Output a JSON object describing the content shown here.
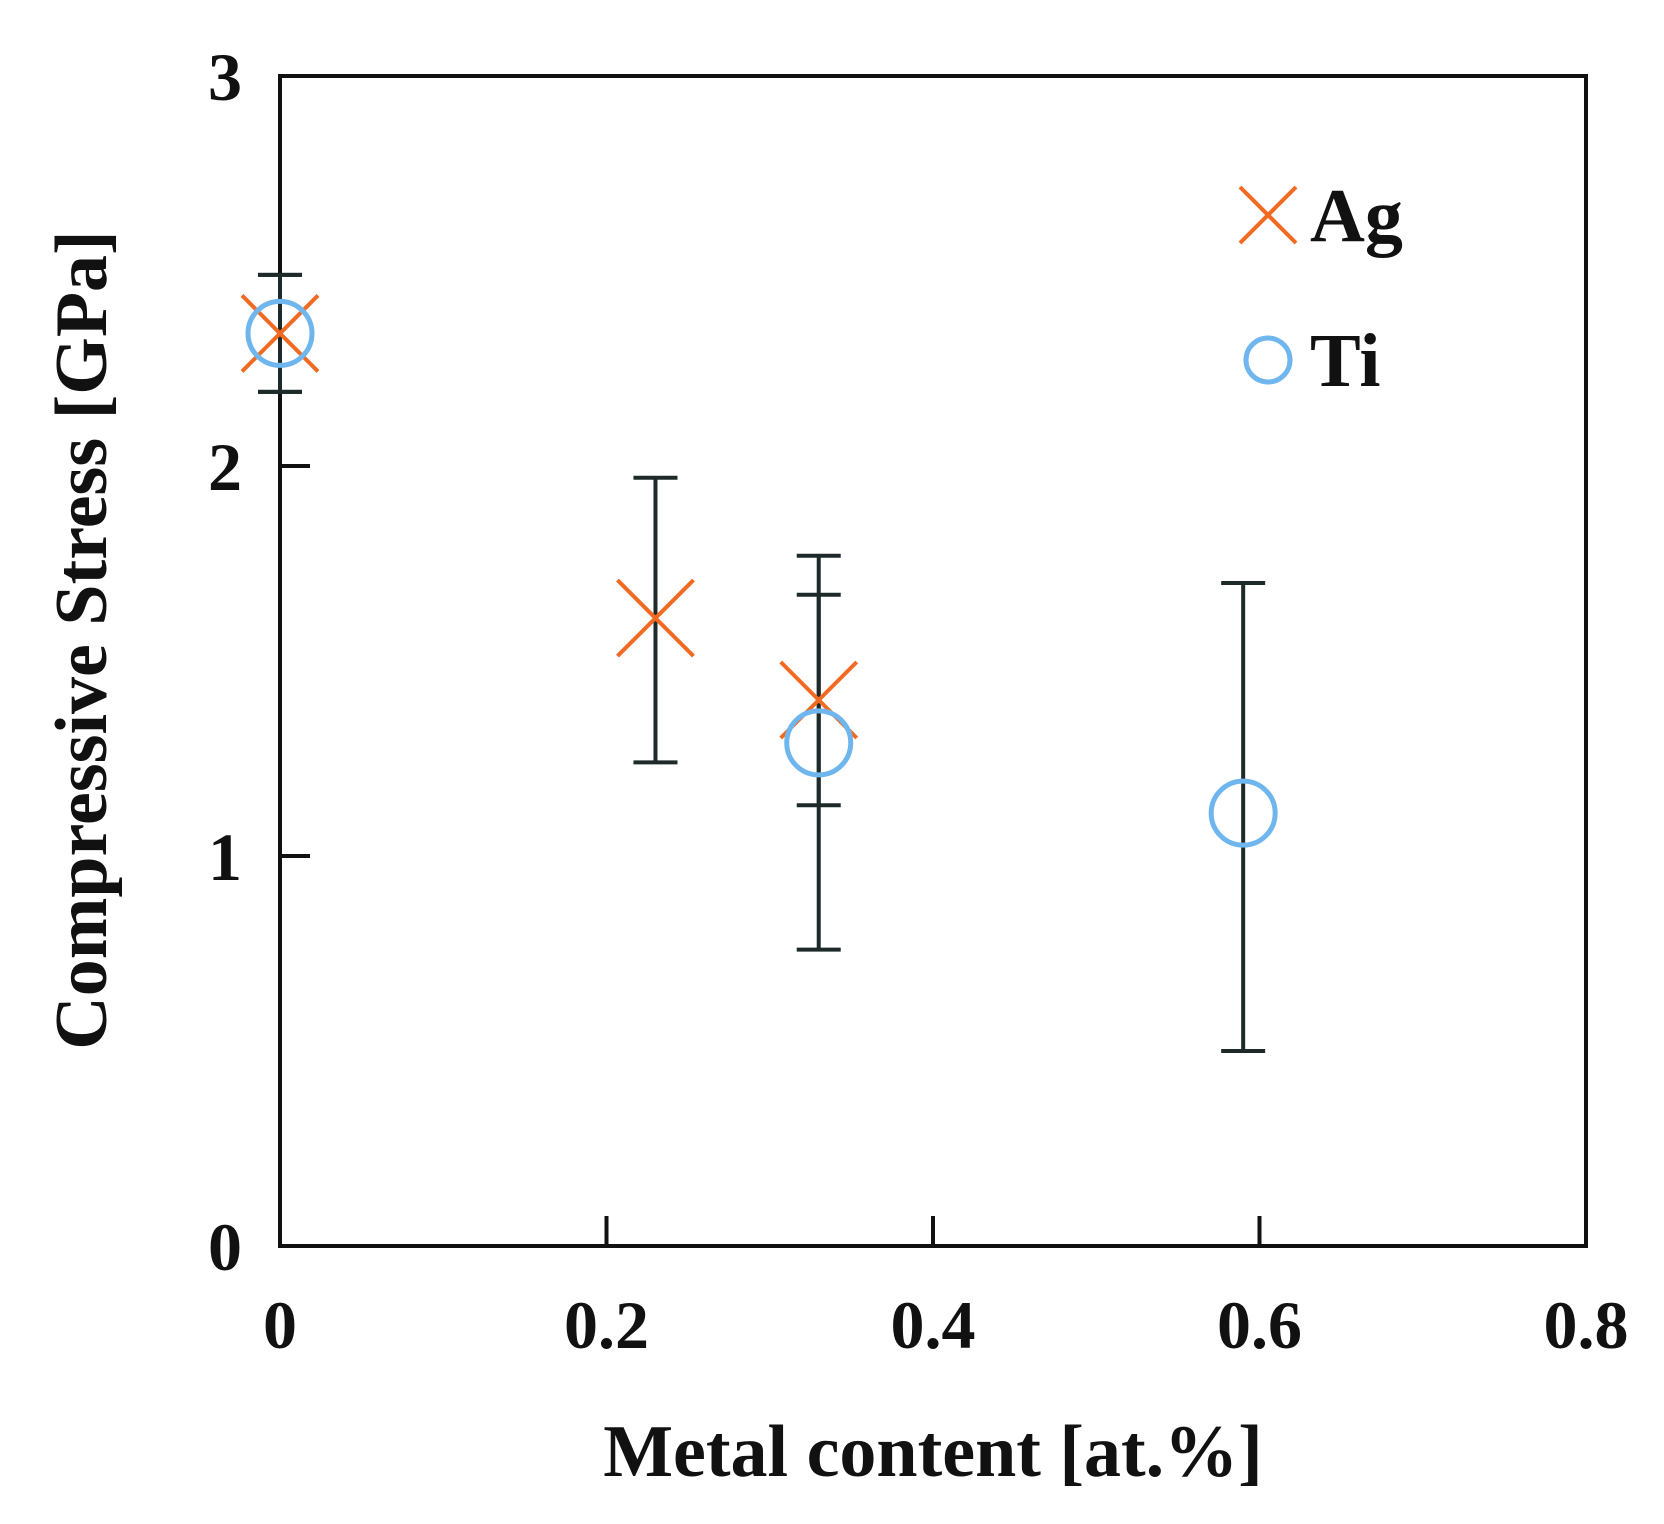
{
  "chart_data": {
    "type": "scatter",
    "title": "",
    "xlabel": "Metal content [at.%]",
    "ylabel": "Compressive Stress [GPa]",
    "xlim": [
      0,
      0.8
    ],
    "ylim": [
      0,
      3
    ],
    "x_ticks": [
      0,
      0.2,
      0.4,
      0.6,
      0.8
    ],
    "x_tick_labels": [
      "0",
      "0.2",
      "0.4",
      "0.6",
      "0.8"
    ],
    "y_ticks": [
      0,
      1,
      2,
      3
    ],
    "y_tick_labels": [
      "0",
      "1",
      "2",
      "3"
    ],
    "grid": false,
    "legend_position": "top-right",
    "series": [
      {
        "name": "Ag",
        "marker": "x",
        "color": "#f06a22",
        "points": [
          {
            "x": 0.0,
            "y": 2.34,
            "err_low": 2.19,
            "err_high": 2.49
          },
          {
            "x": 0.23,
            "y": 1.61,
            "err_low": 1.24,
            "err_high": 1.97
          },
          {
            "x": 0.33,
            "y": 1.4,
            "err_low": 1.13,
            "err_high": 1.67
          }
        ]
      },
      {
        "name": "Ti",
        "marker": "circle",
        "color": "#6fb6ee",
        "points": [
          {
            "x": 0.0,
            "y": 2.34,
            "err_low": 2.19,
            "err_high": 2.49
          },
          {
            "x": 0.33,
            "y": 1.29,
            "err_low": 0.76,
            "err_high": 1.77
          },
          {
            "x": 0.59,
            "y": 1.11,
            "err_low": 0.5,
            "err_high": 1.7
          }
        ]
      }
    ],
    "errorbar_color": "#1e2a2a"
  }
}
